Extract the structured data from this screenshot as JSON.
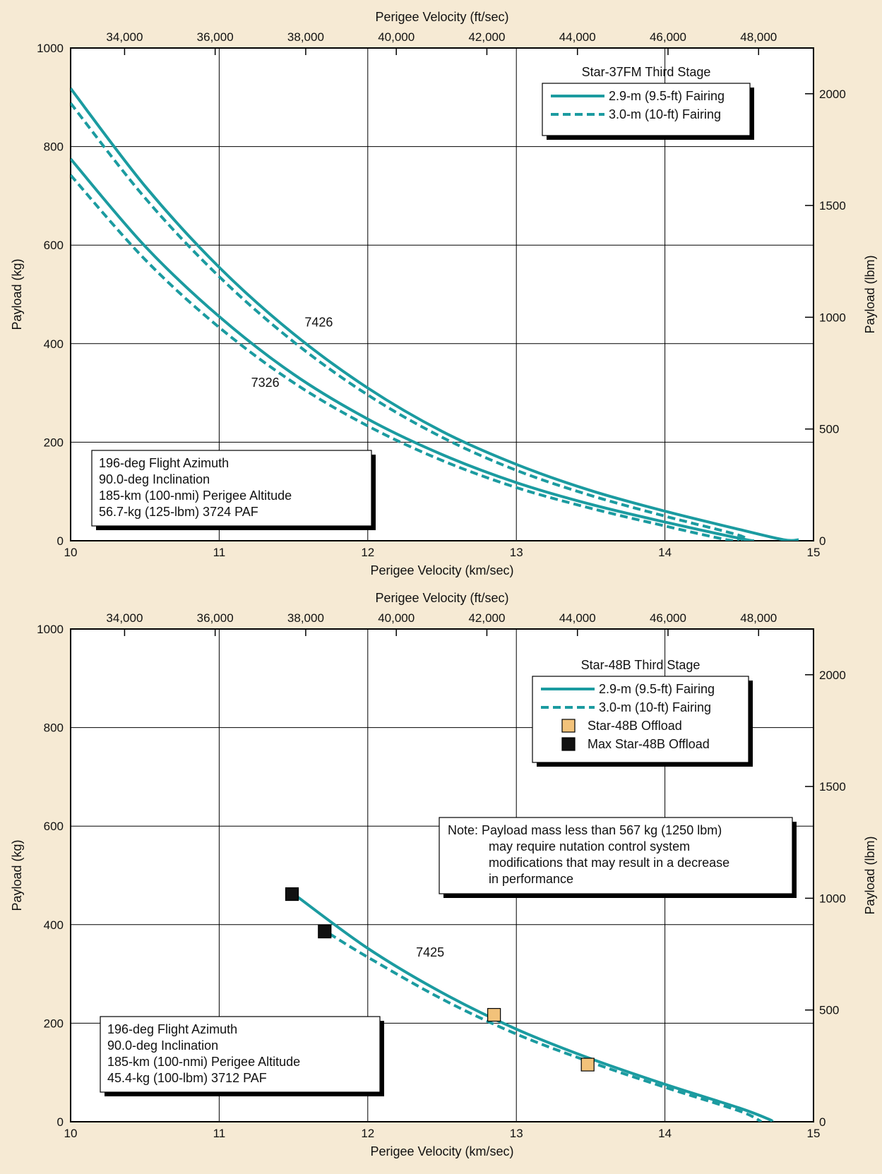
{
  "colors": {
    "background": "#f6ead4",
    "curve": "#1b9ba0",
    "offload": "#f2c27a",
    "max_offload": "#111111",
    "grid": "#000000"
  },
  "chart_data": [
    {
      "type": "line",
      "xlabel": "Perigee Velocity (km/sec)",
      "x2label": "Perigee Velocity (ft/sec)",
      "ylabel": "Payload (kg)",
      "y2label": "Payload (lbm)",
      "xlim": [
        10,
        15
      ],
      "ylim": [
        0,
        1000
      ],
      "xticks": [
        "10",
        "11",
        "12",
        "13",
        "14",
        "15"
      ],
      "yticks": [
        "0",
        "200",
        "400",
        "600",
        "800",
        "1000"
      ],
      "x2ticks": [
        {
          "value": 34000,
          "label": "34,000"
        },
        {
          "value": 36000,
          "label": "36,000"
        },
        {
          "value": 38000,
          "label": "38,000"
        },
        {
          "value": 40000,
          "label": "40,000"
        },
        {
          "value": 42000,
          "label": "42,000"
        },
        {
          "value": 44000,
          "label": "44,000"
        },
        {
          "value": 46000,
          "label": "46,000"
        },
        {
          "value": 48000,
          "label": "48,000"
        }
      ],
      "y2ticks": [
        {
          "value": 0,
          "label": "0"
        },
        {
          "value": 500,
          "label": "500"
        },
        {
          "value": 1000,
          "label": "1000"
        },
        {
          "value": 1500,
          "label": "1500"
        },
        {
          "value": 2000,
          "label": "2000"
        }
      ],
      "grid": true,
      "legend": {
        "title": "Star-37FM Third Stage",
        "position": "top-right",
        "entries": [
          {
            "label": "2.9-m (9.5-ft) Fairing",
            "style": "solid"
          },
          {
            "label": "3.0-m (10-ft) Fairing",
            "style": "dashed"
          }
        ]
      },
      "annotation": {
        "lines": [
          "196-deg Flight Azimuth",
          "90.0-deg Inclination",
          "185-km (100-nmi) Perigee Altitude",
          "56.7-kg (125-lbm) 3724 PAF"
        ],
        "position": "bottom-left"
      },
      "curve_labels": [
        {
          "text": "7426",
          "x": 11.67,
          "y": 435
        },
        {
          "text": "7326",
          "x": 11.31,
          "y": 312
        }
      ],
      "series": [
        {
          "group": "7426",
          "style": "solid",
          "points": [
            [
              10,
              918
            ],
            [
              10.5,
              720
            ],
            [
              11,
              555
            ],
            [
              11.5,
              420
            ],
            [
              12,
              310
            ],
            [
              12.5,
              222
            ],
            [
              13,
              155
            ],
            [
              13.5,
              102
            ],
            [
              14,
              60
            ],
            [
              14.5,
              23
            ],
            [
              14.8,
              2
            ],
            [
              14.9,
              2
            ]
          ]
        },
        {
          "group": "7426",
          "style": "dashed",
          "points": [
            [
              10,
              888
            ],
            [
              10.5,
              696
            ],
            [
              11,
              536
            ],
            [
              11.5,
              404
            ],
            [
              12,
              296
            ],
            [
              12.5,
              210
            ],
            [
              13,
              143
            ],
            [
              13.5,
              92
            ],
            [
              14,
              50
            ],
            [
              14.5,
              11
            ],
            [
              14.52,
              0
            ]
          ]
        },
        {
          "group": "7326",
          "style": "solid",
          "points": [
            [
              10,
              775
            ],
            [
              10.5,
              598
            ],
            [
              11,
              455
            ],
            [
              11.5,
              338
            ],
            [
              12,
              247
            ],
            [
              12.5,
              175
            ],
            [
              13,
              118
            ],
            [
              13.5,
              74
            ],
            [
              14,
              38
            ],
            [
              14.5,
              5
            ],
            [
              14.6,
              0
            ]
          ]
        },
        {
          "group": "7326",
          "style": "dashed",
          "points": [
            [
              10,
              742
            ],
            [
              10.5,
              571
            ],
            [
              11,
              433
            ],
            [
              11.5,
              321
            ],
            [
              12,
              233
            ],
            [
              12.5,
              163
            ],
            [
              13,
              108
            ],
            [
              13.5,
              66
            ],
            [
              14,
              30
            ],
            [
              14.4,
              3
            ],
            [
              14.5,
              0
            ]
          ]
        }
      ]
    },
    {
      "type": "line",
      "xlabel": "Perigee Velocity (km/sec)",
      "x2label": "Perigee Velocity (ft/sec)",
      "ylabel": "Payload (kg)",
      "y2label": "Payload (lbm)",
      "xlim": [
        10,
        15
      ],
      "ylim": [
        0,
        1000
      ],
      "xticks": [
        "10",
        "11",
        "12",
        "13",
        "14",
        "15"
      ],
      "yticks": [
        "0",
        "200",
        "400",
        "600",
        "800",
        "1000"
      ],
      "x2ticks": [
        {
          "value": 34000,
          "label": "34,000"
        },
        {
          "value": 36000,
          "label": "36,000"
        },
        {
          "value": 38000,
          "label": "38,000"
        },
        {
          "value": 40000,
          "label": "40,000"
        },
        {
          "value": 42000,
          "label": "42,000"
        },
        {
          "value": 44000,
          "label": "44,000"
        },
        {
          "value": 46000,
          "label": "46,000"
        },
        {
          "value": 48000,
          "label": "48,000"
        }
      ],
      "y2ticks": [
        {
          "value": 0,
          "label": "0"
        },
        {
          "value": 500,
          "label": "500"
        },
        {
          "value": 1000,
          "label": "1000"
        },
        {
          "value": 1500,
          "label": "1500"
        },
        {
          "value": 2000,
          "label": "2000"
        }
      ],
      "grid": true,
      "legend": {
        "title": "Star-48B Third Stage",
        "position": "top-right",
        "entries": [
          {
            "label": "2.9-m (9.5-ft) Fairing",
            "style": "solid"
          },
          {
            "label": "3.0-m (10-ft) Fairing",
            "style": "dashed"
          },
          {
            "label": "Star-48B Offload",
            "style": "offload"
          },
          {
            "label": "Max Star-48B Offload",
            "style": "max_offload"
          }
        ]
      },
      "note": {
        "lines": [
          "Note: Payload mass less than 567 kg (1250 lbm)",
          "may require nutation control system",
          "modifications that may result in a decrease",
          "in performance"
        ],
        "position": "right-middle"
      },
      "annotation": {
        "lines": [
          "196-deg Flight Azimuth",
          "90.0-deg Inclination",
          "185-km (100-nmi) Perigee Altitude",
          "45.4-kg (100-lbm) 3712 PAF"
        ],
        "position": "bottom-left"
      },
      "curve_labels": [
        {
          "text": "7425",
          "x": 12.42,
          "y": 335
        }
      ],
      "series": [
        {
          "group": "7425",
          "style": "solid",
          "points": [
            [
              11.52,
              458
            ],
            [
              12,
              352
            ],
            [
              12.5,
              262
            ],
            [
              13,
              188
            ],
            [
              13.5,
              128
            ],
            [
              14,
              76
            ],
            [
              14.5,
              28
            ],
            [
              14.7,
              5
            ],
            [
              14.72,
              0
            ]
          ]
        },
        {
          "group": "7425",
          "style": "dashed",
          "points": [
            [
              11.74,
              382
            ],
            [
              12,
              334
            ],
            [
              12.5,
              249
            ],
            [
              13,
              178
            ],
            [
              13.5,
              121
            ],
            [
              14,
              70
            ],
            [
              14.5,
              22
            ],
            [
              14.65,
              0
            ]
          ]
        }
      ],
      "markers": [
        {
          "type": "max_offload",
          "x": 11.49,
          "y": 462
        },
        {
          "type": "max_offload",
          "x": 11.71,
          "y": 386
        },
        {
          "type": "offload",
          "x": 12.85,
          "y": 217
        },
        {
          "type": "offload",
          "x": 13.48,
          "y": 116
        }
      ]
    }
  ]
}
